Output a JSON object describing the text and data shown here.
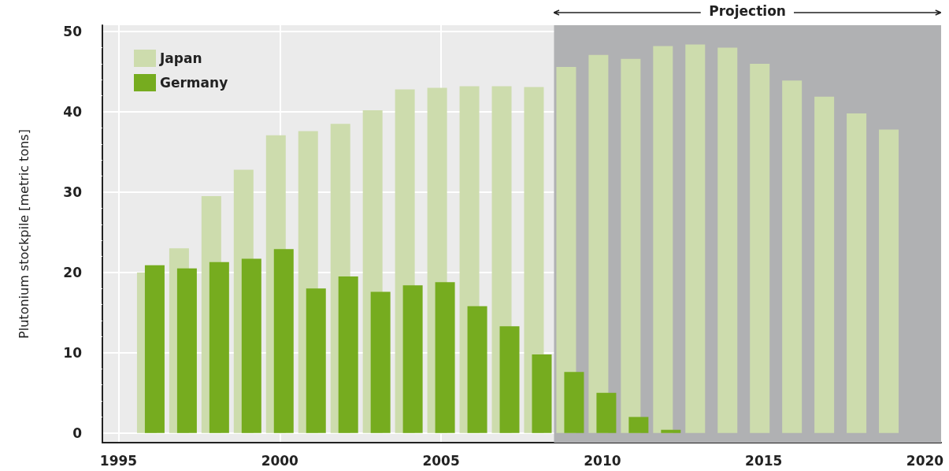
{
  "chart_data": {
    "type": "bar",
    "ylabel": "Plutonium stockpile [metric tons]",
    "x": [
      1996,
      1997,
      1998,
      1999,
      2000,
      2001,
      2002,
      2003,
      2004,
      2005,
      2006,
      2007,
      2008,
      2009,
      2010,
      2011,
      2012,
      2013,
      2014,
      2015,
      2016,
      2017,
      2018,
      2019
    ],
    "series": [
      {
        "name": "Japan",
        "color": "#cddcad",
        "values": [
          20,
          23,
          29.5,
          32.8,
          37.1,
          37.6,
          38.5,
          40.2,
          42.8,
          43,
          43.2,
          43.2,
          43.1,
          45.6,
          47.1,
          46.6,
          48.2,
          48.4,
          48,
          46,
          43.9,
          41.9,
          39.8,
          37.8
        ]
      },
      {
        "name": "Germany",
        "color": "#76ac1f",
        "values": [
          20.9,
          20.5,
          21.3,
          21.7,
          22.9,
          18,
          19.5,
          17.6,
          18.4,
          18.8,
          15.8,
          13.3,
          9.8,
          7.6,
          5,
          2,
          0.4,
          null,
          null,
          null,
          null,
          null,
          null,
          null
        ]
      }
    ],
    "xlim": [
      1994.5,
      2020.5
    ],
    "xticks": [
      1995,
      2000,
      2005,
      2010,
      2015,
      2020
    ],
    "ylim": [
      -1.2,
      50.8
    ],
    "yticks": [
      0,
      10,
      20,
      30,
      40,
      50
    ],
    "bands": [
      {
        "axis": "x",
        "from": 2008.5,
        "to": 2020.5,
        "label": "Projection",
        "color": "#b0b1b3"
      }
    ],
    "grid": true,
    "legend": "top left"
  }
}
